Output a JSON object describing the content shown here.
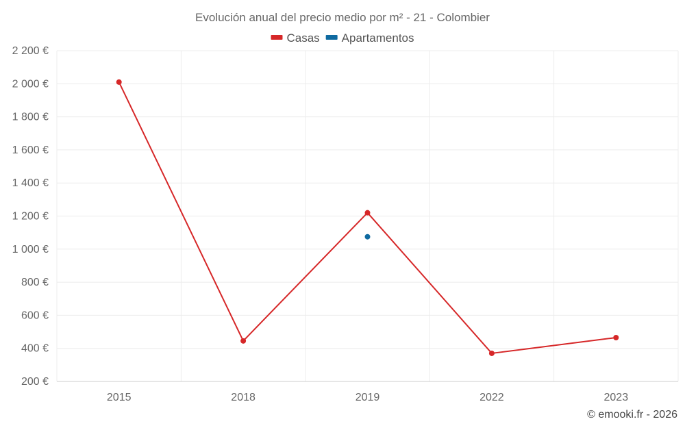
{
  "chart_data": {
    "type": "line",
    "title": "Evolución anual del precio medio por m² - 21 - Colombier",
    "categories": [
      "2015",
      "2018",
      "2019",
      "2022",
      "2023"
    ],
    "ylim": [
      200,
      2200
    ],
    "yticks": [
      200,
      400,
      600,
      800,
      1000,
      1200,
      1400,
      1600,
      1800,
      2000,
      2200
    ],
    "ytick_labels": [
      "200 €",
      "400 €",
      "600 €",
      "800 €",
      "1 000 €",
      "1 200 €",
      "1 400 €",
      "1 600 €",
      "1 800 €",
      "2 000 €",
      "2 200 €"
    ],
    "grid": true,
    "legend_position": "top-center",
    "series": [
      {
        "name": "Casas",
        "color": "#d62728",
        "values": [
          2010,
          445,
          1220,
          370,
          465
        ]
      },
      {
        "name": "Apartamentos",
        "color": "#0f6aa0",
        "values": [
          null,
          null,
          1075,
          null,
          null
        ]
      }
    ]
  },
  "credit": "© emooki.fr - 2026"
}
